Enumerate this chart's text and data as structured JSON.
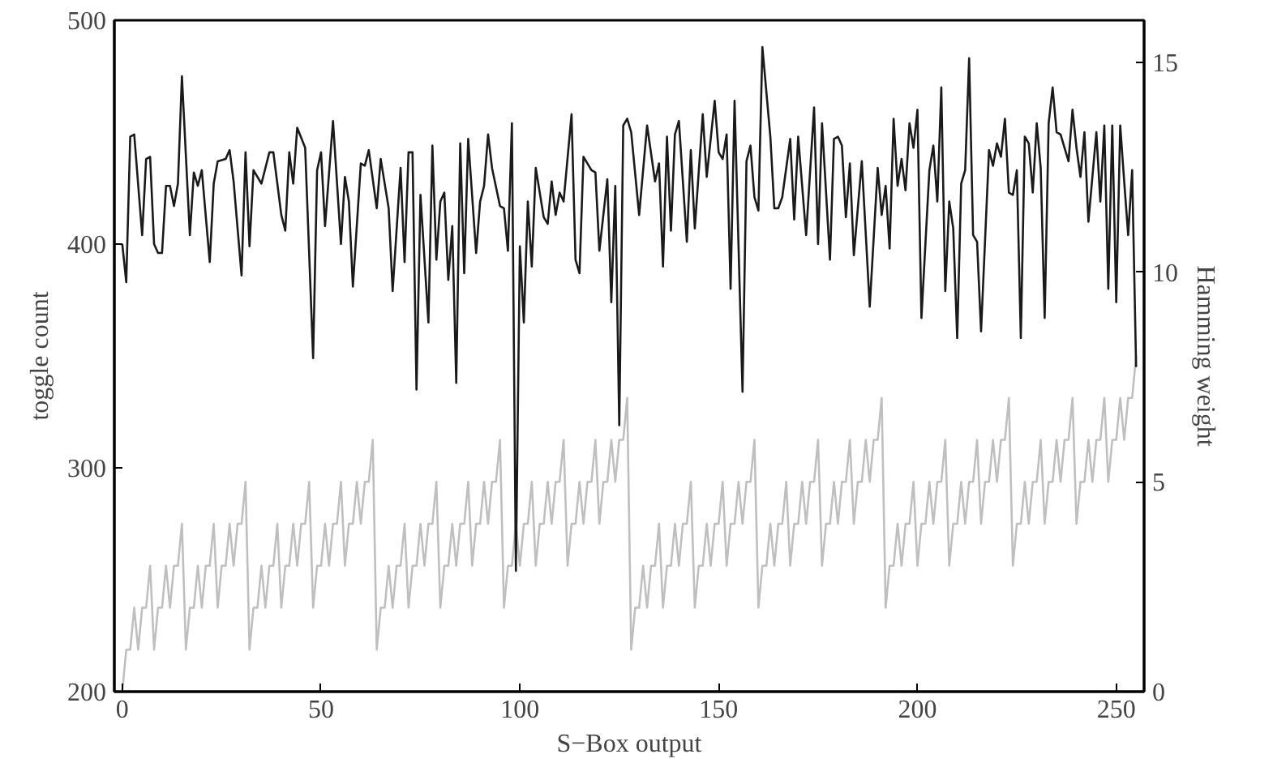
{
  "chart_data": {
    "type": "line",
    "xlabel": "S−Box output",
    "ylabel": "toggle count",
    "y2label": "Hamming weight",
    "x": [
      0,
      1,
      2,
      3,
      4,
      5,
      6,
      7,
      8,
      9,
      10,
      11,
      12,
      13,
      14,
      15,
      16,
      17,
      18,
      19,
      20,
      21,
      22,
      23,
      24,
      25,
      26,
      27,
      28,
      29,
      30,
      31,
      32,
      33,
      34,
      35,
      36,
      37,
      38,
      39,
      40,
      41,
      42,
      43,
      44,
      45,
      46,
      47,
      48,
      49,
      50,
      51,
      52,
      53,
      54,
      55,
      56,
      57,
      58,
      59,
      60,
      61,
      62,
      63,
      64,
      65,
      66,
      67,
      68,
      69,
      70,
      71,
      72,
      73,
      74,
      75,
      76,
      77,
      78,
      79,
      80,
      81,
      82,
      83,
      84,
      85,
      86,
      87,
      88,
      89,
      90,
      91,
      92,
      93,
      94,
      95,
      96,
      97,
      98,
      99,
      100,
      101,
      102,
      103,
      104,
      105,
      106,
      107,
      108,
      109,
      110,
      111,
      112,
      113,
      114,
      115,
      116,
      117,
      118,
      119,
      120,
      121,
      122,
      123,
      124,
      125,
      126,
      127,
      128,
      129,
      130,
      131,
      132,
      133,
      134,
      135,
      136,
      137,
      138,
      139,
      140,
      141,
      142,
      143,
      144,
      145,
      146,
      147,
      148,
      149,
      150,
      151,
      152,
      153,
      154,
      155,
      156,
      157,
      158,
      159,
      160,
      161,
      162,
      163,
      164,
      165,
      166,
      167,
      168,
      169,
      170,
      171,
      172,
      173,
      174,
      175,
      176,
      177,
      178,
      179,
      180,
      181,
      182,
      183,
      184,
      185,
      186,
      187,
      188,
      189,
      190,
      191,
      192,
      193,
      194,
      195,
      196,
      197,
      198,
      199,
      200,
      201,
      202,
      203,
      204,
      205,
      206,
      207,
      208,
      209,
      210,
      211,
      212,
      213,
      214,
      215,
      216,
      217,
      218,
      219,
      220,
      221,
      222,
      223,
      224,
      225,
      226,
      227,
      228,
      229,
      230,
      231,
      232,
      233,
      234,
      235,
      236,
      237,
      238,
      239,
      240,
      241,
      242,
      243,
      244,
      245,
      246,
      247,
      248,
      249,
      250,
      251,
      252,
      253,
      254,
      255
    ],
    "series": [
      {
        "color": "#1a1a1a",
        "x": [
          0,
          1,
          2,
          3,
          5,
          6,
          7,
          8,
          9,
          10,
          11,
          12,
          13,
          14,
          15,
          17,
          18,
          19,
          20,
          22,
          23,
          24,
          26,
          27,
          28,
          30,
          31,
          32,
          33,
          35,
          37,
          38,
          40,
          41,
          42,
          43,
          44,
          46,
          48,
          49,
          50,
          51,
          53,
          55,
          56,
          57,
          58,
          60,
          61,
          62,
          64,
          65,
          67,
          68,
          70,
          71,
          72,
          73,
          74,
          75,
          77,
          78,
          79,
          80,
          81,
          82,
          83,
          84,
          85,
          86,
          87,
          89,
          90,
          91,
          92,
          93,
          95,
          96,
          97,
          98,
          99,
          100,
          101,
          102,
          103,
          104,
          106,
          107,
          108,
          109,
          110,
          111,
          113,
          114,
          115,
          116,
          118,
          119,
          120,
          122,
          123,
          124,
          125,
          126,
          127,
          128,
          130,
          132,
          134,
          135,
          136,
          137,
          138,
          139,
          140,
          142,
          143,
          144,
          146,
          147,
          149,
          150,
          151,
          152,
          153,
          154,
          156,
          157,
          158,
          159,
          160,
          161,
          163,
          164,
          165,
          166,
          168,
          169,
          170,
          172,
          174,
          175,
          176,
          178,
          179,
          180,
          181,
          182,
          183,
          184,
          186,
          188,
          190,
          191,
          192,
          193,
          194,
          195,
          196,
          197,
          198,
          199,
          200,
          201,
          203,
          204,
          205,
          206,
          207,
          208,
          209,
          210,
          211,
          212,
          213,
          214,
          215,
          216,
          218,
          219,
          220,
          221,
          222,
          223,
          224,
          225,
          226,
          227,
          228,
          229,
          230,
          231,
          232,
          233,
          234,
          235,
          236,
          238,
          239,
          240,
          241,
          242,
          243,
          245,
          246,
          247,
          248,
          249,
          250,
          251,
          252,
          253,
          254,
          255
        ],
        "values": [
          400,
          383,
          448,
          449,
          404,
          438,
          439,
          400,
          396,
          396,
          426,
          426,
          417,
          427,
          475,
          404,
          432,
          426,
          433,
          392,
          427,
          437,
          438,
          442,
          428,
          386,
          441,
          399,
          433,
          427,
          441,
          441,
          413,
          406,
          441,
          427,
          452,
          443,
          349,
          433,
          441,
          408,
          455,
          400,
          430,
          419,
          381,
          436,
          435,
          442,
          416,
          438,
          416,
          379,
          434,
          392,
          441,
          441,
          335,
          422,
          365,
          444,
          393,
          419,
          423,
          384,
          408,
          338,
          445,
          387,
          447,
          396,
          419,
          426,
          449,
          434,
          417,
          416,
          397,
          454,
          254,
          399,
          365,
          419,
          390,
          434,
          412,
          409,
          428,
          413,
          423,
          419,
          458,
          393,
          387,
          439,
          433,
          432,
          397,
          429,
          374,
          426,
          319,
          453,
          456,
          450,
          413,
          453,
          428,
          436,
          390,
          448,
          406,
          449,
          455,
          401,
          442,
          407,
          458,
          430,
          464,
          441,
          438,
          449,
          380,
          464,
          334,
          437,
          444,
          421,
          415,
          488,
          448,
          416,
          416,
          421,
          447,
          411,
          448,
          404,
          461,
          400,
          454,
          393,
          447,
          448,
          444,
          412,
          436,
          395,
          437,
          372,
          434,
          413,
          426,
          398,
          456,
          426,
          438,
          424,
          454,
          443,
          460,
          367,
          433,
          444,
          419,
          470,
          379,
          419,
          407,
          358,
          427,
          433,
          483,
          404,
          401,
          361,
          442,
          435,
          445,
          439,
          456,
          423,
          422,
          433,
          358,
          448,
          445,
          423,
          454,
          434,
          367,
          454,
          470,
          450,
          449,
          437,
          460,
          443,
          430,
          450,
          410,
          450,
          419,
          453,
          380,
          453,
          374,
          453,
          428,
          404,
          433,
          345
        ]
      },
      {
        "color": "#bfbfbf",
        "axis": "y2",
        "values": [
          0,
          1,
          1,
          2,
          1,
          2,
          2,
          3,
          1,
          2,
          2,
          3,
          2,
          3,
          3,
          4,
          1,
          2,
          2,
          3,
          2,
          3,
          3,
          4,
          2,
          3,
          3,
          4,
          3,
          4,
          4,
          5,
          1,
          2,
          2,
          3,
          2,
          3,
          3,
          4,
          2,
          3,
          3,
          4,
          3,
          4,
          4,
          5,
          2,
          3,
          3,
          4,
          3,
          4,
          4,
          5,
          3,
          4,
          4,
          5,
          4,
          5,
          5,
          6,
          1,
          2,
          2,
          3,
          2,
          3,
          3,
          4,
          2,
          3,
          3,
          4,
          3,
          4,
          4,
          5,
          2,
          3,
          3,
          4,
          3,
          4,
          4,
          5,
          3,
          4,
          4,
          5,
          4,
          5,
          5,
          6,
          2,
          3,
          3,
          4,
          3,
          4,
          4,
          5,
          3,
          4,
          4,
          5,
          4,
          5,
          5,
          6,
          3,
          4,
          4,
          5,
          4,
          5,
          5,
          6,
          4,
          5,
          5,
          6,
          5,
          6,
          6,
          7,
          1,
          2,
          2,
          3,
          2,
          3,
          3,
          4,
          2,
          3,
          3,
          4,
          3,
          4,
          4,
          5,
          2,
          3,
          3,
          4,
          3,
          4,
          4,
          5,
          3,
          4,
          4,
          5,
          4,
          5,
          5,
          6,
          2,
          3,
          3,
          4,
          3,
          4,
          4,
          5,
          3,
          4,
          4,
          5,
          4,
          5,
          5,
          6,
          3,
          4,
          4,
          5,
          4,
          5,
          5,
          6,
          4,
          5,
          5,
          6,
          5,
          6,
          6,
          7,
          2,
          3,
          3,
          4,
          3,
          4,
          4,
          5,
          3,
          4,
          4,
          5,
          4,
          5,
          5,
          6,
          3,
          4,
          4,
          5,
          4,
          5,
          5,
          6,
          4,
          5,
          5,
          6,
          5,
          6,
          6,
          7,
          3,
          4,
          4,
          5,
          4,
          5,
          5,
          6,
          4,
          5,
          5,
          6,
          5,
          6,
          6,
          7,
          4,
          5,
          5,
          6,
          5,
          6,
          6,
          7,
          5,
          6,
          6,
          7,
          6,
          7,
          7,
          8
        ]
      }
    ],
    "xlim": [
      -2,
      257
    ],
    "xticks": [
      0,
      50,
      100,
      150,
      200,
      250
    ],
    "ylim": [
      200,
      500
    ],
    "yticks": [
      200,
      300,
      400,
      500
    ],
    "y2lim": [
      0,
      16
    ],
    "y2ticks": [
      0,
      5,
      10,
      15
    ]
  }
}
